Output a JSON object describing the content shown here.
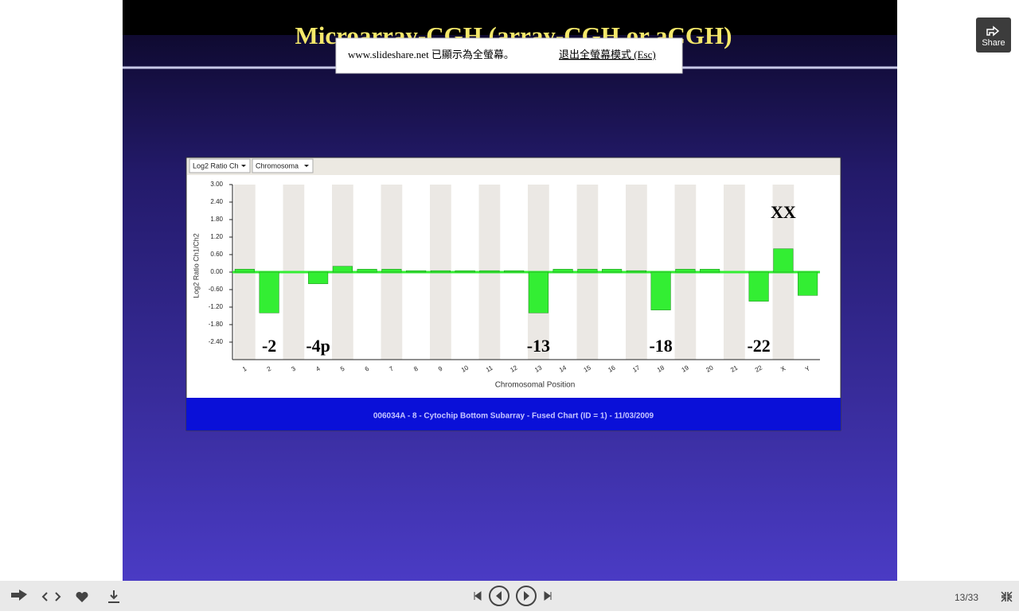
{
  "browser": {
    "notice": "www.slideshare.net 已顯示為全螢幕。",
    "exit_link": "退出全螢幕模式 (Esc)"
  },
  "slide": {
    "title": "Microarray-CGH (array-CGH or aCGH)",
    "caption": "006034A - 8 - Cytochip Bottom Subarray - Fused Chart (ID = 1) - 11/03/2009"
  },
  "toolbar": {
    "dropdowns": [
      "Log2 Ratio Ch",
      "Chromosoma"
    ]
  },
  "chart_data": {
    "type": "bar",
    "y_label": "Log2 Ratio Ch1/Ch2",
    "x_label": "Chromosomal Position",
    "categories": [
      "1",
      "2",
      "3",
      "4",
      "5",
      "6",
      "7",
      "8",
      "9",
      "10",
      "11",
      "12",
      "13",
      "14",
      "15",
      "16",
      "17",
      "18",
      "19",
      "20",
      "21",
      "22",
      "X",
      "Y"
    ],
    "values": [
      0.1,
      -1.4,
      0,
      -0.4,
      0.2,
      0.1,
      0.1,
      0.05,
      0.05,
      0.05,
      0.05,
      0.05,
      -1.4,
      0.1,
      0.1,
      0.1,
      0.05,
      -1.3,
      0.1,
      0.1,
      0,
      -1.0,
      0.8,
      -0.8
    ],
    "color": "#33ee33",
    "ylim": [
      -3,
      3
    ],
    "yticks": [
      {
        "value": 3,
        "label": "3.00"
      },
      {
        "value": 2.4,
        "label": "2.40"
      },
      {
        "value": 1.8,
        "label": "1.80"
      },
      {
        "value": 1.2,
        "label": "1.20"
      },
      {
        "value": 0.6,
        "label": "0.60"
      },
      {
        "value": 0,
        "label": "0.00"
      },
      {
        "value": -0.6,
        "label": "-0.60"
      },
      {
        "value": -1.2,
        "label": "-1.20"
      },
      {
        "value": -1.8,
        "label": "-1.80"
      },
      {
        "value": -2.4,
        "label": "-2.40"
      }
    ],
    "annotations": [
      "-2",
      "-4p",
      "-13",
      "-18",
      "-22",
      "XX"
    ]
  },
  "player": {
    "share": "Share",
    "page": "13/33"
  }
}
